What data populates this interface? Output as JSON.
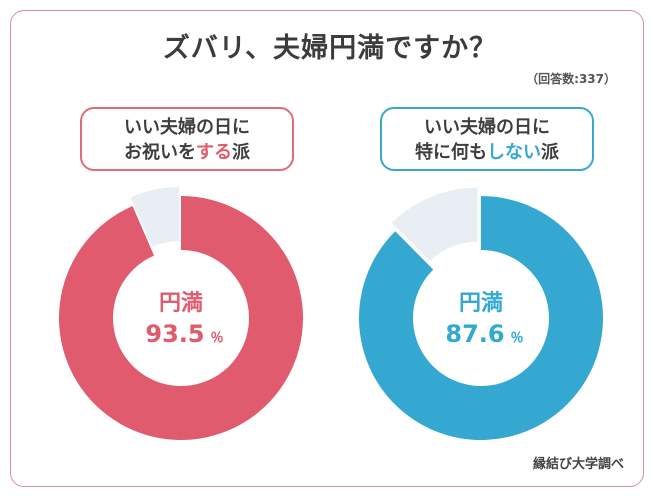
{
  "title": "ズバリ、夫婦円満ですか？",
  "respondents": "（回答数:337）",
  "source": "縁結び大学調べ",
  "chart_data": [
    {
      "type": "pie",
      "group": {
        "line1": "いい夫婦の日に",
        "line2_pre": "お祝いを",
        "line2_highlight": "する",
        "line2_post": "派"
      },
      "center_label": "円満",
      "value_text": "93.5",
      "unit": "％",
      "values": [
        93.5,
        6.5
      ],
      "colors": [
        "#df5b6d",
        "#e8eef3"
      ],
      "accent": "#df5b6d"
    },
    {
      "type": "pie",
      "group": {
        "line1": "いい夫婦の日に",
        "line2_pre": "特に何も",
        "line2_highlight": "しない",
        "line2_post": "派"
      },
      "center_label": "円満",
      "value_text": "87.6",
      "unit": "％",
      "values": [
        87.6,
        12.4
      ],
      "colors": [
        "#35a8d2",
        "#e8eef3"
      ],
      "accent": "#35a8d2"
    }
  ]
}
